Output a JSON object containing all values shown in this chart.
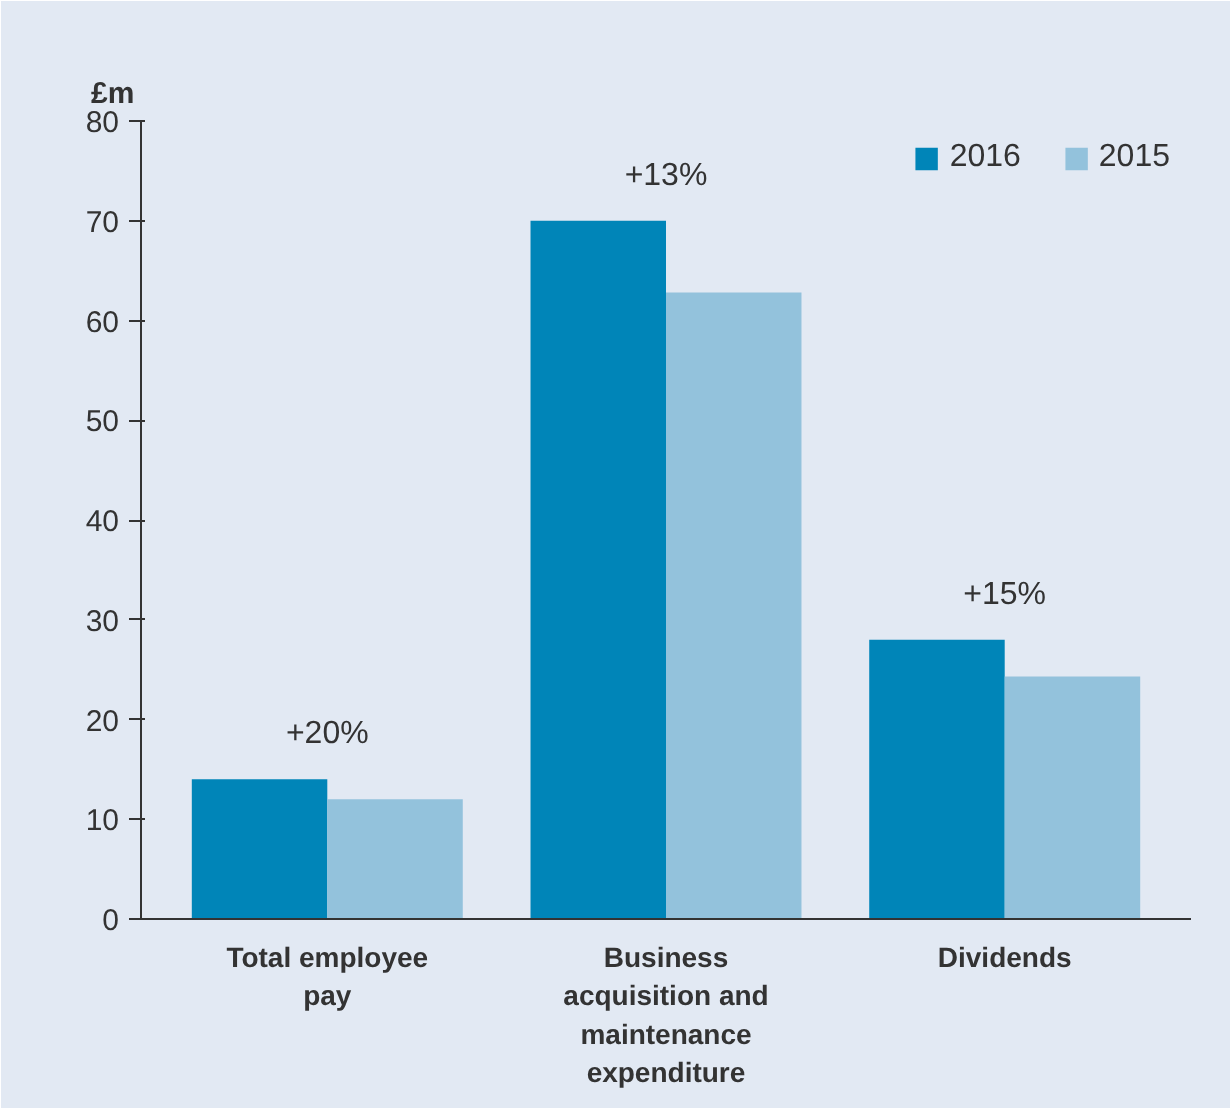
{
  "chart_data": {
    "type": "bar",
    "ylabel": "£m",
    "categories": [
      "Total employee pay",
      "Business acquisition and maintenance expenditure",
      "Dividends"
    ],
    "series": [
      {
        "name": "2016",
        "color": "#0085b8",
        "values": [
          14,
          70,
          28
        ]
      },
      {
        "name": "2015",
        "color": "#93c2dc",
        "values": [
          12,
          62.8,
          24.3
        ]
      }
    ],
    "ylim": [
      0,
      80
    ],
    "yticks": [
      0,
      10,
      20,
      30,
      40,
      50,
      60,
      70,
      80
    ],
    "grid": false,
    "legend": "top right",
    "annotations": [
      "+20%",
      "+13%",
      "+15%"
    ]
  }
}
